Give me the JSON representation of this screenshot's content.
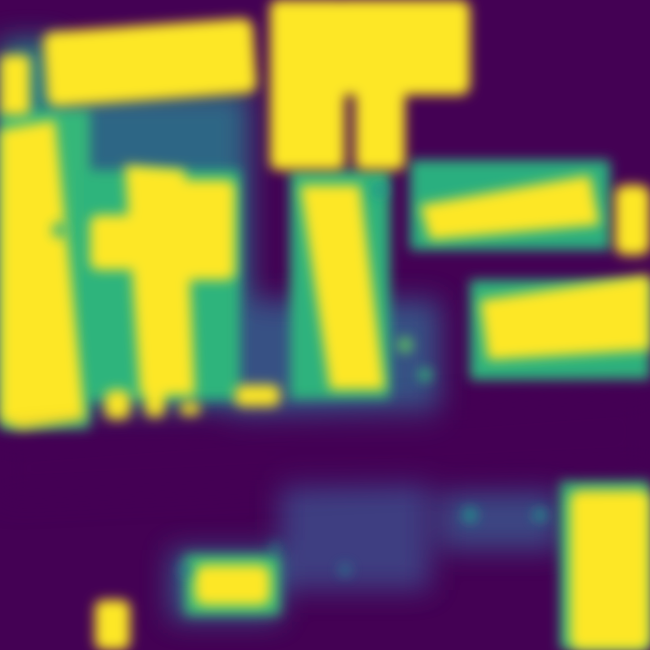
{
  "image": {
    "kind": "segmentation-probability-heatmap",
    "colormap": "viridis",
    "colors": {
      "low": "#440154",
      "mid_low": "#3b528b",
      "mid": "#21918c",
      "mid_high": "#5ec962",
      "high": "#fde725"
    },
    "has_visible_text": false
  }
}
